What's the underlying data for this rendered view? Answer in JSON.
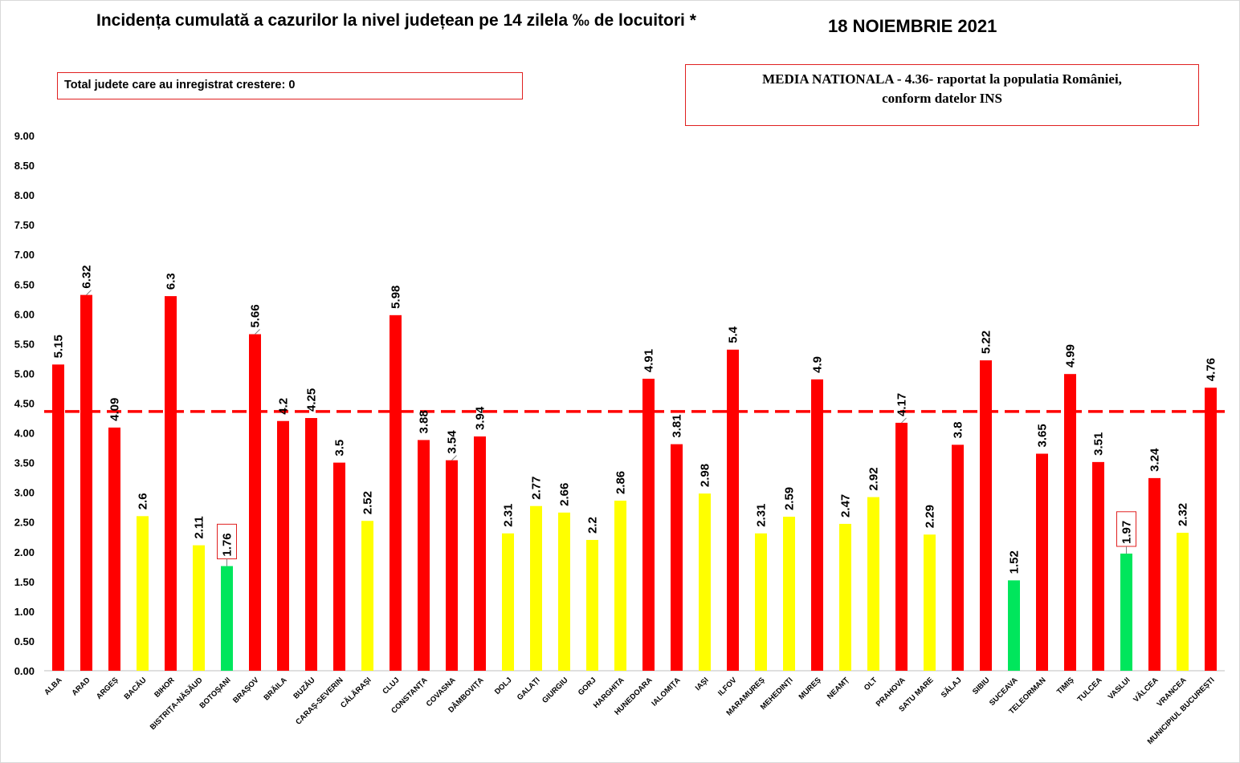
{
  "header": {
    "title": "Incidența cumulată a cazurilor la nivel județean pe 14 zilela ‰ de locuitori *",
    "date": "18 NOIEMBRIE 2021"
  },
  "info": {
    "growth_text": "Total judete care au inregistrat crestere: 0",
    "media_line1": "MEDIA NATIONALA   - 4.36-  raportat la populatia României,",
    "media_line2": "conform datelor INS"
  },
  "colors": {
    "red": "#ff0000",
    "yellow": "#ffff00",
    "green": "#00e65c",
    "average_line": "#ff0000"
  },
  "chart_data": {
    "type": "bar",
    "title": "Incidența cumulată a cazurilor la nivel județean pe 14 zilela ‰ de locuitori *",
    "xlabel": "",
    "ylabel": "",
    "ylim": [
      0,
      9
    ],
    "yticks": [
      "0.00",
      "0.50",
      "1.00",
      "1.50",
      "2.00",
      "2.50",
      "3.00",
      "3.50",
      "4.00",
      "4.50",
      "5.00",
      "5.50",
      "6.00",
      "6.50",
      "7.00",
      "7.50",
      "8.00",
      "8.50",
      "9.00"
    ],
    "grid": false,
    "legend": "none",
    "reference_line": 4.36,
    "categories": [
      "ALBA",
      "ARAD",
      "ARGEȘ",
      "BACĂU",
      "BIHOR",
      "BISTRIȚA-NĂSĂUD",
      "BOTOȘANI",
      "BRAȘOV",
      "BRĂILA",
      "BUZĂU",
      "CARAȘ-SEVERIN",
      "CĂLĂRAȘI",
      "CLUJ",
      "CONSTANȚA",
      "COVASNA",
      "DÂMBOVIȚA",
      "DOLJ",
      "GALAȚI",
      "GIURGIU",
      "GORJ",
      "HARGHITA",
      "HUNEDOARA",
      "IALOMIȚA",
      "IAȘI",
      "ILFOV",
      "MARAMUREȘ",
      "MEHEDINȚI",
      "MUREȘ",
      "NEAMȚ",
      "OLT",
      "PRAHOVA",
      "SATU MARE",
      "SĂLAJ",
      "SIBIU",
      "SUCEAVA",
      "TELEORMAN",
      "TIMIȘ",
      "TULCEA",
      "VASLUI",
      "VÂLCEA",
      "VRANCEA",
      "MUNICIPIUL BUCUREȘTI"
    ],
    "values": [
      5.15,
      6.32,
      4.09,
      2.6,
      6.3,
      2.11,
      1.76,
      5.66,
      4.2,
      4.25,
      3.5,
      2.52,
      5.98,
      3.88,
      3.54,
      3.94,
      2.31,
      2.77,
      2.66,
      2.2,
      2.86,
      4.91,
      3.81,
      2.98,
      5.4,
      2.31,
      2.59,
      4.9,
      2.47,
      2.92,
      4.17,
      2.29,
      3.8,
      5.22,
      1.52,
      3.65,
      4.99,
      3.51,
      1.97,
      3.24,
      2.32,
      4.76
    ],
    "labels": [
      "5.15",
      "6.32",
      "4.09",
      "2.6",
      "6.3",
      "2.11",
      "1.76",
      "5.66",
      "4.2",
      "4.25",
      "3.5",
      "2.52",
      "5.98",
      "3.88",
      "3.54",
      "3.94",
      "2.31",
      "2.77",
      "2.66",
      "2.2",
      "2.86",
      "4.91",
      "3.81",
      "2.98",
      "5.4",
      "2.31",
      "2.59",
      "4.9",
      "2.47",
      "2.92",
      "4.17",
      "2.29",
      "3.8",
      "5.22",
      "1.52",
      "3.65",
      "4.99",
      "3.51",
      "1.97",
      "3.24",
      "2.32",
      "4.76"
    ],
    "bar_colors": [
      "red",
      "red",
      "red",
      "yellow",
      "red",
      "yellow",
      "green",
      "red",
      "red",
      "red",
      "red",
      "yellow",
      "red",
      "red",
      "red",
      "red",
      "yellow",
      "yellow",
      "yellow",
      "yellow",
      "yellow",
      "red",
      "red",
      "yellow",
      "red",
      "yellow",
      "yellow",
      "red",
      "yellow",
      "yellow",
      "red",
      "yellow",
      "red",
      "red",
      "green",
      "red",
      "red",
      "red",
      "green",
      "red",
      "yellow",
      "red"
    ],
    "boxed_labels": [
      "BOTOȘANI",
      "VASLUI"
    ]
  }
}
